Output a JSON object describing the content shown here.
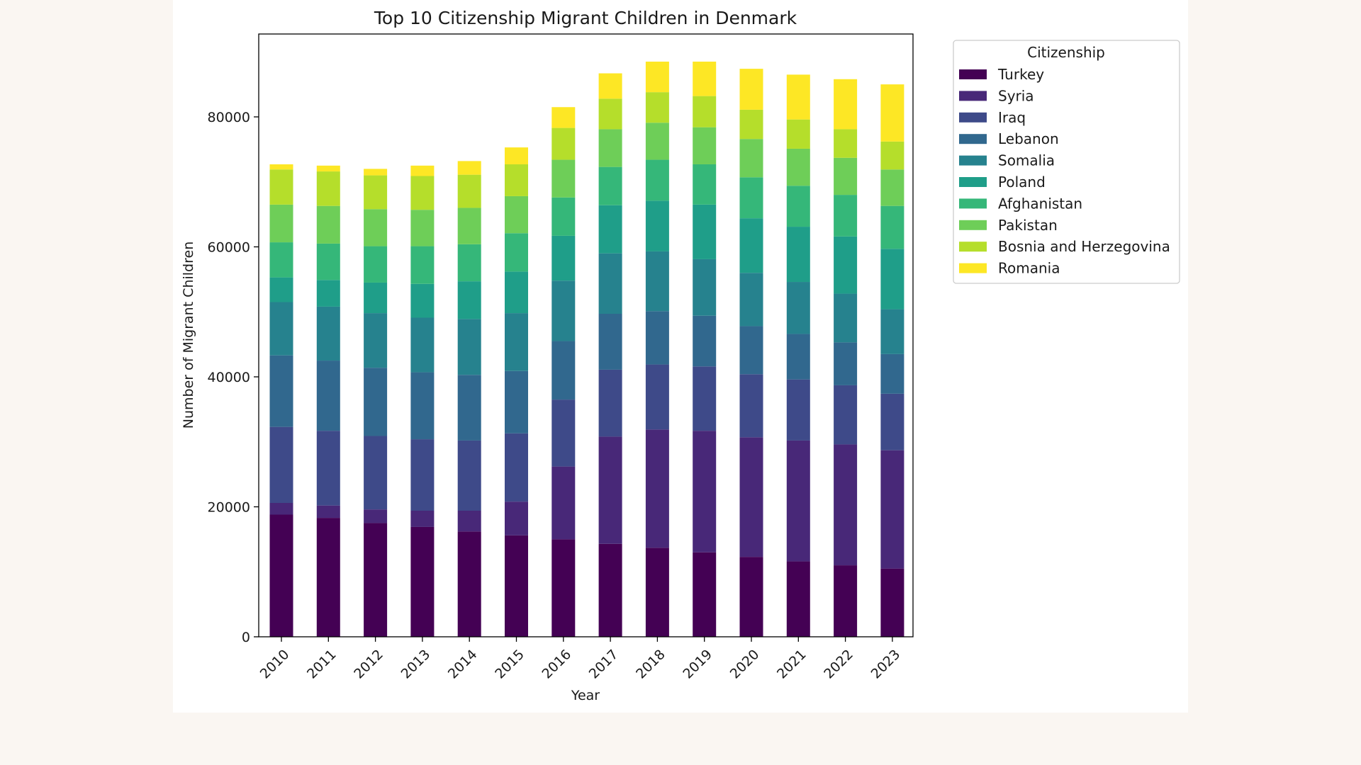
{
  "chart_data": {
    "type": "bar",
    "stacked": true,
    "title": "Top 10 Citizenship Migrant Children in Denmark",
    "xlabel": "Year",
    "ylabel": "Number of Migrant Children",
    "ylim": [
      0,
      93000
    ],
    "yticks": [
      0,
      20000,
      40000,
      60000,
      80000
    ],
    "ytick_labels": [
      "0",
      "20000",
      "40000",
      "60000",
      "80000"
    ],
    "categories": [
      "2010",
      "2011",
      "2012",
      "2013",
      "2014",
      "2015",
      "2016",
      "2017",
      "2018",
      "2019",
      "2020",
      "2021",
      "2022",
      "2023"
    ],
    "legend": {
      "title": "Citizenship",
      "placement": "outside-right-top"
    },
    "series": [
      {
        "name": "Turkey",
        "color": "#440154",
        "values": [
          18800,
          18300,
          17500,
          16900,
          16200,
          15600,
          15000,
          14300,
          13700,
          13000,
          12300,
          11600,
          11000,
          10500
        ]
      },
      {
        "name": "Syria",
        "color": "#482878",
        "values": [
          1800,
          1900,
          2100,
          2500,
          3200,
          5200,
          11200,
          16500,
          18200,
          18700,
          18400,
          18600,
          18600,
          18200
        ]
      },
      {
        "name": "Iraq",
        "color": "#3e4a89",
        "values": [
          11700,
          11500,
          11300,
          11000,
          10800,
          10500,
          10300,
          10300,
          10000,
          9900,
          9700,
          9400,
          9100,
          8700
        ]
      },
      {
        "name": "Lebanon",
        "color": "#31688e",
        "values": [
          11000,
          10800,
          10500,
          10300,
          10100,
          9600,
          9000,
          8600,
          8200,
          7800,
          7400,
          7000,
          6600,
          6100
        ]
      },
      {
        "name": "Somalia",
        "color": "#26828e",
        "values": [
          8200,
          8300,
          8400,
          8400,
          8600,
          8900,
          9300,
          9300,
          9200,
          8700,
          8200,
          8000,
          7500,
          6900
        ]
      },
      {
        "name": "Poland",
        "color": "#1f9e89",
        "values": [
          3800,
          4100,
          4700,
          5200,
          5800,
          6400,
          6900,
          7400,
          7800,
          8400,
          8400,
          8500,
          8800,
          9300
        ]
      },
      {
        "name": "Afghanistan",
        "color": "#35b779",
        "values": [
          5400,
          5600,
          5600,
          5800,
          5700,
          5900,
          5900,
          5900,
          6300,
          6200,
          6300,
          6300,
          6400,
          6600
        ]
      },
      {
        "name": "Pakistan",
        "color": "#6ece58",
        "values": [
          5800,
          5800,
          5700,
          5600,
          5600,
          5700,
          5800,
          5800,
          5700,
          5700,
          5900,
          5700,
          5700,
          5600
        ]
      },
      {
        "name": "Bosnia and Herzegovina",
        "color": "#b5de2b",
        "values": [
          5400,
          5300,
          5200,
          5200,
          5100,
          4900,
          4900,
          4700,
          4700,
          4800,
          4500,
          4500,
          4400,
          4300
        ]
      },
      {
        "name": "Romania",
        "color": "#fde725",
        "values": [
          800,
          900,
          1000,
          1600,
          2100,
          2600,
          3200,
          3900,
          4700,
          5300,
          6300,
          6900,
          7700,
          8800
        ]
      }
    ]
  }
}
